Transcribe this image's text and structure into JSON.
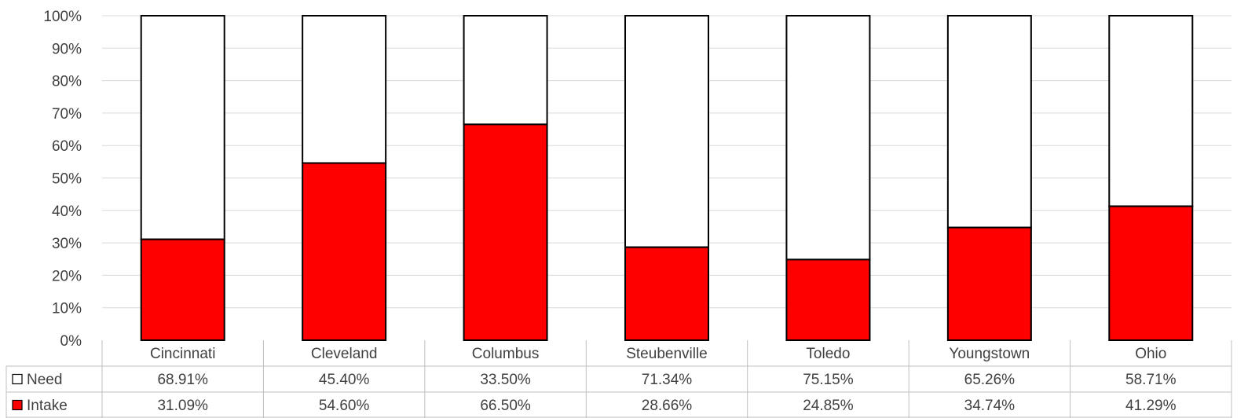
{
  "chart_data": {
    "type": "bar",
    "stacked": true,
    "percent": true,
    "title": "",
    "xlabel": "",
    "ylabel": "",
    "ylim": [
      0,
      100
    ],
    "yticks": [
      "0%",
      "10%",
      "20%",
      "30%",
      "40%",
      "50%",
      "60%",
      "70%",
      "80%",
      "90%",
      "100%"
    ],
    "grid": true,
    "legend": "data-table-left",
    "categories": [
      "Cincinnati",
      "Cleveland",
      "Columbus",
      "Steubenville",
      "Toledo",
      "Youngstown",
      "Ohio"
    ],
    "series": [
      {
        "name": "Intake",
        "color": "#ff0000",
        "values": [
          31.09,
          54.6,
          66.5,
          28.66,
          24.85,
          34.74,
          41.29
        ],
        "labels": [
          "31.09%",
          "54.60%",
          "66.50%",
          "28.66%",
          "24.85%",
          "34.74%",
          "41.29%"
        ]
      },
      {
        "name": "Need",
        "color": "#ffffff",
        "values": [
          68.91,
          45.4,
          33.5,
          71.34,
          75.15,
          65.26,
          58.71
        ],
        "labels": [
          "68.91%",
          "45.40%",
          "33.50%",
          "71.34%",
          "75.15%",
          "65.26%",
          "58.71%"
        ]
      }
    ],
    "table_row_order": [
      "Need",
      "Intake"
    ]
  }
}
